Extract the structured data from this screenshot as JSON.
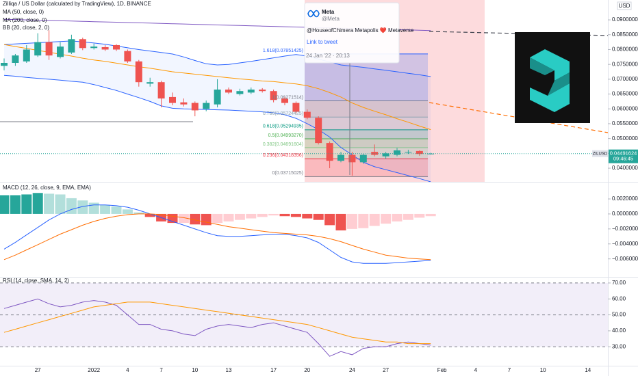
{
  "chart_data": [
    {
      "type": "candlestick",
      "title": "Zilliqa / US Dollar (calculated by TradingView), 1D, BINANCE",
      "symbol": "ZILUSD",
      "currency": "USD",
      "countdown": "09:46:45",
      "up_color": "#26a69a",
      "down_color": "#ef5350",
      "open": [
        0.0745,
        0.0755,
        0.076,
        0.078,
        0.0825,
        0.0775,
        0.079,
        0.0835,
        0.0805,
        0.0808,
        0.0815,
        0.0795,
        0.076,
        0.0685,
        0.069,
        0.064,
        0.0622,
        0.062,
        0.06,
        0.0615,
        0.0665,
        0.065,
        0.0655,
        0.0665,
        0.066,
        0.0635,
        0.062,
        0.059,
        0.057,
        0.0485,
        0.0425,
        0.0445,
        0.042,
        0.0455,
        0.044,
        0.0445,
        0.0455,
        0.0458,
        0.0449,
        null,
        null,
        null,
        null,
        null,
        null,
        null,
        null,
        null,
        null,
        null,
        null,
        null,
        null
      ],
      "high": [
        0.077,
        0.0785,
        0.0815,
        0.0855,
        0.0865,
        0.0825,
        0.085,
        0.084,
        0.082,
        0.0815,
        0.0818,
        0.08,
        0.0765,
        0.0705,
        0.0695,
        0.0655,
        0.0635,
        0.0625,
        0.0628,
        0.07,
        0.0672,
        0.0668,
        0.0672,
        0.067,
        0.0665,
        0.064,
        0.0625,
        0.0598,
        0.0575,
        0.049,
        0.0455,
        0.0455,
        0.0448,
        0.048,
        0.0455,
        0.0468,
        0.0462,
        0.046,
        0.0452,
        null,
        null,
        null,
        null,
        null,
        null,
        null,
        null,
        null,
        null,
        null,
        null,
        null,
        null
      ],
      "low": [
        0.073,
        0.0745,
        0.0755,
        0.0775,
        0.0765,
        0.077,
        0.0785,
        0.0798,
        0.08,
        0.0795,
        0.0795,
        0.0755,
        0.0675,
        0.0675,
        0.0605,
        0.0612,
        0.0608,
        0.0575,
        0.0592,
        0.0605,
        0.065,
        0.0645,
        0.065,
        0.0655,
        0.0622,
        0.0612,
        0.0585,
        0.0565,
        0.048,
        0.04,
        0.042,
        0.0375,
        0.0415,
        0.044,
        0.0432,
        0.044,
        0.0448,
        0.0442,
        0.0446,
        null,
        null,
        null,
        null,
        null,
        null,
        null,
        null,
        null,
        null,
        null,
        null,
        null,
        null
      ],
      "close": [
        0.0755,
        0.078,
        0.08,
        0.0825,
        0.078,
        0.081,
        0.0835,
        0.0805,
        0.081,
        0.08,
        0.08,
        0.076,
        0.069,
        0.069,
        0.0635,
        0.062,
        0.0615,
        0.0595,
        0.062,
        0.0665,
        0.0655,
        0.066,
        0.0665,
        0.066,
        0.063,
        0.062,
        0.059,
        0.057,
        0.0485,
        0.0425,
        0.0445,
        0.042,
        0.0445,
        0.0445,
        0.045,
        0.046,
        0.0455,
        0.0448,
        0.04491624,
        null,
        null,
        null,
        null,
        null,
        null,
        null,
        null,
        null,
        null,
        null,
        null,
        null,
        null
      ],
      "overlays": [
        {
          "name": "MA (50, close, 0)",
          "color": "#ff9800",
          "values": [
            0.0817,
            0.081,
            0.0804,
            0.0797,
            0.0791,
            0.0784,
            0.0778,
            0.0771,
            0.0765,
            0.076,
            0.0754,
            0.0748,
            0.0742,
            0.0737,
            0.0731,
            0.0725,
            0.0721,
            0.0717,
            0.0713,
            0.0709,
            0.0705,
            0.0701,
            0.0698,
            0.0694,
            0.0692,
            0.0688,
            0.0684,
            0.0678,
            0.0668,
            0.0655,
            0.064,
            0.062,
            0.0605,
            0.0592,
            0.058,
            0.0567,
            0.0555,
            0.0542,
            0.053,
            null,
            null,
            null,
            null,
            null,
            null,
            null,
            null,
            null,
            null,
            null,
            null,
            null,
            null
          ]
        },
        {
          "name": "MA (200, close, 0)",
          "color": "#7e57c2",
          "values": [
            0.0902,
            0.0901,
            0.09,
            0.0899,
            0.0898,
            0.0897,
            0.0896,
            0.0895,
            0.0894,
            0.0893,
            0.0892,
            0.0891,
            0.089,
            0.0889,
            0.0888,
            0.0887,
            0.0886,
            0.0885,
            0.0884,
            0.0883,
            0.0882,
            0.0881,
            0.088,
            0.0879,
            0.0878,
            0.0877,
            0.0876,
            0.0875,
            0.0874,
            0.0873,
            0.0872,
            0.0871,
            0.087,
            0.0869,
            0.0868,
            0.0867,
            0.0866,
            0.0865,
            0.0864,
            null,
            null,
            null,
            null,
            null,
            null,
            null,
            null,
            null,
            null,
            null,
            null,
            null,
            null
          ]
        }
      ],
      "bands": [
        {
          "name": "BB (20, close, 2, 0)",
          "color": "#2962ff",
          "upper": [
            0.0817,
            0.0819,
            0.0821,
            0.0823,
            0.0825,
            0.0827,
            0.0829,
            0.0826,
            0.0822,
            0.0818,
            0.0812,
            0.0806,
            0.08,
            0.0795,
            0.079,
            0.0785,
            0.0775,
            0.0763,
            0.0752,
            0.0748,
            0.075,
            0.0755,
            0.076,
            0.0766,
            0.0772,
            0.0778,
            0.0783,
            0.0778,
            0.0768,
            0.0758,
            0.0748,
            0.0744,
            0.074,
            0.0735,
            0.073,
            0.0725,
            0.072,
            0.0715,
            0.0709,
            null,
            null,
            null,
            null,
            null,
            null,
            null,
            null,
            null,
            null,
            null,
            null,
            null,
            null
          ],
          "lower": [
            0.0713,
            0.071,
            0.0706,
            0.0703,
            0.07,
            0.0697,
            0.0693,
            0.069,
            0.0682,
            0.0672,
            0.0662,
            0.065,
            0.0638,
            0.0625,
            0.061,
            0.0602,
            0.06,
            0.0599,
            0.0598,
            0.0597,
            0.0596,
            0.0594,
            0.0592,
            0.059,
            0.0587,
            0.058,
            0.0568,
            0.055,
            0.053,
            0.0505,
            0.047,
            0.0445,
            0.042,
            0.0405,
            0.0395,
            0.0385,
            0.0375,
            0.0365,
            0.0354,
            null,
            null,
            null,
            null,
            null,
            null,
            null,
            null,
            null,
            null,
            null,
            null,
            null,
            null
          ]
        }
      ],
      "fib_levels": [
        {
          "value": 0.07851425,
          "label": "1.618(0.07851425)",
          "color": "#2962ff"
        },
        {
          "value": 0.06271514,
          "label": "1(0.06271514)",
          "color": "#787b86"
        },
        {
          "value": 0.05724425,
          "label": "0.786(0.05724425)",
          "color": "#90a4ae"
        },
        {
          "value": 0.05294935,
          "label": "0.618(0.05294935)",
          "color": "#089981"
        },
        {
          "value": 0.0499327,
          "label": "0.5(0.04993270)",
          "color": "#4caf50"
        },
        {
          "value": 0.04691604,
          "label": "0.382(0.04691604)",
          "color": "#81c784"
        },
        {
          "value": 0.04318356,
          "label": "0.236(0.04318356)",
          "color": "#f23645"
        },
        {
          "value": 0.03715025,
          "label": "0(0.03715025)",
          "color": "#787b86"
        }
      ],
      "annotation": {
        "author": "Meta",
        "handle": "@Meta",
        "text": "@HouseofChimera Metapolis ❤️ Metaverse",
        "link": "Link to tweet",
        "time": "24 Jan '22 · 20:13"
      },
      "ylim": [
        0.0354,
        0.0967
      ],
      "yticks": [
        {
          "value": 0.04,
          "label": "0.04000000"
        },
        {
          "value": 0.045,
          "label": "0.04500000"
        },
        {
          "value": 0.05,
          "label": "0.05000000"
        },
        {
          "value": 0.055,
          "label": "0.05500000"
        },
        {
          "value": 0.06,
          "label": "0.06000000"
        },
        {
          "value": 0.065,
          "label": "0.06500000"
        },
        {
          "value": 0.07,
          "label": "0.07000000"
        },
        {
          "value": 0.075,
          "label": "0.07500000"
        },
        {
          "value": 0.08,
          "label": "0.08000000"
        },
        {
          "value": 0.085,
          "label": "0.08500000"
        },
        {
          "value": 0.09,
          "label": "0.09000000"
        }
      ]
    },
    {
      "type": "macd",
      "title": "MACD (12, 26, close, 9, EMA, EMA)",
      "histogram": {
        "colors": {
          "pos_rising": "#26a69a",
          "pos_falling": "#b2dfdb",
          "neg_falling": "#ef5350",
          "neg_rising": "#ffcdd2"
        },
        "values": [
          0.0025,
          0.0025,
          0.0026,
          0.0028,
          0.0027,
          0.0026,
          0.0021,
          0.0018,
          0.0015,
          0.0012,
          0.001,
          0.0006,
          0.0002,
          -0.0004,
          -0.001,
          -0.0012,
          -0.0012,
          -0.0014,
          -0.0015,
          -0.0012,
          -0.001,
          -0.0008,
          -0.0006,
          -0.0004,
          -0.0002,
          -0.0003,
          -0.0004,
          -0.0006,
          -0.0008,
          -0.0015,
          -0.0022,
          -0.002,
          -0.0019,
          -0.0016,
          -0.0013,
          -0.001,
          -0.0008,
          -0.0005,
          -0.0003,
          null,
          null,
          null,
          null,
          null,
          null,
          null,
          null,
          null,
          null,
          null,
          null,
          null,
          null
        ]
      },
      "series": [
        {
          "color": "#2962ff",
          "values": [
            -0.0047,
            -0.0038,
            -0.0028,
            -0.0018,
            -0.0008,
            0,
            0.0006,
            0.001,
            0.0012,
            0.0012,
            0.0011,
            0.0009,
            0.0005,
            0,
            -0.0005,
            -0.001,
            -0.0015,
            -0.002,
            -0.0025,
            -0.0029,
            -0.003,
            -0.003,
            -0.0029,
            -0.0028,
            -0.0027,
            -0.0027,
            -0.0029,
            -0.0032,
            -0.0038,
            -0.0048,
            -0.0058,
            -0.0064,
            -0.0066,
            -0.0066,
            -0.0066,
            -0.0065,
            -0.0064,
            -0.0063,
            -0.0062,
            null,
            null,
            null,
            null,
            null,
            null,
            null,
            null,
            null,
            null,
            null,
            null,
            null,
            null
          ]
        },
        {
          "color": "#ff6d00",
          "values": [
            -0.0061,
            -0.0055,
            -0.0048,
            -0.0041,
            -0.0034,
            -0.0027,
            -0.0021,
            -0.0015,
            -0.001,
            -0.0006,
            -0.0003,
            -0.0001,
            0,
            0,
            -0.0001,
            -0.0003,
            -0.0005,
            -0.0008,
            -0.0011,
            -0.0014,
            -0.0017,
            -0.0019,
            -0.0021,
            -0.0023,
            -0.0025,
            -0.0026,
            -0.0027,
            -0.0028,
            -0.003,
            -0.0033,
            -0.0037,
            -0.0042,
            -0.0047,
            -0.0051,
            -0.0055,
            -0.0057,
            -0.0059,
            -0.006,
            -0.0061,
            null,
            null,
            null,
            null,
            null,
            null,
            null,
            null,
            null,
            null,
            null,
            null,
            null,
            null
          ]
        }
      ],
      "ylim": [
        -0.0084,
        0.0041
      ],
      "yticks": [
        {
          "value": 0.002,
          "label": "0.00200000"
        },
        {
          "value": 0,
          "label": "0.00000000"
        },
        {
          "value": -0.002,
          "label": "−0.00200000"
        },
        {
          "value": -0.004,
          "label": "−0.00400000"
        },
        {
          "value": -0.006,
          "label": "−0.00600000"
        }
      ]
    },
    {
      "type": "rsi",
      "title": "RSI (14, close, SMA, 14, 2)",
      "categories": [
        null,
        null,
        null,
        "27",
        null,
        null,
        null,
        null,
        "2022",
        null,
        null,
        "4",
        null,
        null,
        "7",
        null,
        null,
        "10",
        null,
        null,
        "13",
        null,
        null,
        null,
        "17",
        null,
        null,
        "20",
        null,
        null,
        null,
        "24",
        null,
        null,
        "27",
        null,
        null,
        null,
        null,
        "Feb",
        null,
        null,
        "4",
        null,
        null,
        "7",
        null,
        null,
        "10",
        null,
        null,
        null,
        "14"
      ],
      "series": [
        {
          "color": "#7e57c2",
          "values": [
            54,
            56,
            58,
            60,
            57,
            55,
            56,
            58,
            59,
            58,
            56,
            50,
            44,
            44,
            41,
            40,
            38,
            37,
            41,
            43,
            44,
            43,
            42,
            44,
            45,
            43,
            41,
            39,
            32,
            24,
            27,
            25,
            29,
            30,
            30,
            32,
            33,
            32,
            31,
            null,
            null,
            null,
            null,
            null,
            null,
            null,
            null,
            null,
            null,
            null,
            null,
            null,
            null
          ]
        },
        {
          "color": "#ff9800",
          "values": [
            39,
            41,
            43,
            45,
            47,
            49,
            51,
            53,
            55,
            56,
            57,
            58,
            58,
            58,
            57,
            56,
            55,
            54,
            53,
            52,
            51,
            50,
            49,
            48,
            47,
            46,
            45,
            44,
            42,
            40,
            38,
            36,
            35,
            34,
            33,
            33,
            32,
            32,
            32,
            null,
            null,
            null,
            null,
            null,
            null,
            null,
            null,
            null,
            null,
            null,
            null,
            null,
            null
          ]
        }
      ],
      "levels": [
        70,
        50,
        30
      ],
      "band_color": "#7e57c2",
      "ylim": [
        18.1,
        73.4
      ],
      "yticks": [
        {
          "value": 70,
          "label": "70.00"
        },
        {
          "value": 60,
          "label": "60.00"
        },
        {
          "value": 50,
          "label": "50.00"
        },
        {
          "value": 40,
          "label": "40.00"
        },
        {
          "value": 30,
          "label": "30.00"
        }
      ]
    }
  ]
}
